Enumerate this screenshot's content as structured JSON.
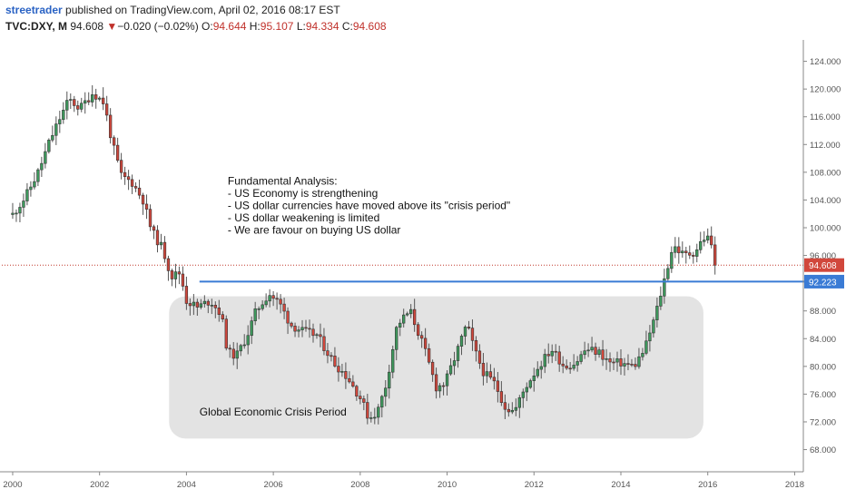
{
  "header": {
    "author": "streetrader",
    "published": " published on TradingView.com, April 02, 2016 08:17 EST",
    "symbol": "TVC:DXY, M",
    "last": "94.608",
    "change_arrow": "▼",
    "change": "−0.020 (−0.02%)",
    "o_label": "O:",
    "o_value": "94.644",
    "h_label": "H:",
    "h_value": "95.107",
    "l_label": "L:",
    "l_value": "94.334",
    "c_label": "C:",
    "c_value": "94.608"
  },
  "colors": {
    "up": "#3e9a5d",
    "down": "#d1473c",
    "wick": "#555555",
    "support_line": "#3a7bd5",
    "price_line": "#c0392b",
    "crisis_box": "#e3e3e3",
    "axis_text": "#555555"
  },
  "chart_data": {
    "type": "candlestick",
    "symbol": "TVC:DXY",
    "interval": "M",
    "x_tick_labels": [
      "2000",
      "2002",
      "2004",
      "2006",
      "2008",
      "2010",
      "2012",
      "2014",
      "2016",
      "2018"
    ],
    "xlim": [
      1999.75,
      2018.2
    ],
    "y_tick_labels": [
      "124.000",
      "120.000",
      "116.000",
      "112.000",
      "108.000",
      "104.000",
      "100.000",
      "96.000",
      "88.000",
      "84.000",
      "80.000",
      "76.000",
      "72.000",
      "68.000"
    ],
    "ylim": [
      64.8,
      126.3
    ],
    "grid": false,
    "current_price": {
      "value": 94.608,
      "label": "94.608"
    },
    "support_line": {
      "value": 92.223,
      "label": "92.223",
      "x_start": 2004.3
    },
    "annotations": [
      {
        "id": "analysis",
        "x": 2004.95,
        "y": 106.2,
        "lines": [
          "Fundamental Analysis:",
          "- US Economy is strengthening",
          "- US dollar currencies have moved above its \"crisis period\"",
          "- US dollar weakening is limited",
          "- We are favour on buying US dollar"
        ]
      },
      {
        "id": "crisis",
        "x": 2004.3,
        "y": 72.9,
        "lines": [
          "Global Economic Crisis Period"
        ]
      }
    ],
    "crisis_zone": {
      "x": [
        2003.6,
        2015.9
      ],
      "y": [
        69.6,
        90.1
      ]
    },
    "series_anchors": [
      [
        2000.0,
        101.9
      ],
      [
        2000.3,
        104.5
      ],
      [
        2000.6,
        108.2
      ],
      [
        2000.85,
        112.5
      ],
      [
        2001.1,
        116.0
      ],
      [
        2001.3,
        118.5
      ],
      [
        2001.55,
        117.2
      ],
      [
        2001.85,
        119.5
      ],
      [
        2002.1,
        118.0
      ],
      [
        2002.3,
        112.0
      ],
      [
        2002.5,
        107.5
      ],
      [
        2002.75,
        106.5
      ],
      [
        2003.0,
        104.0
      ],
      [
        2003.2,
        99.5
      ],
      [
        2003.45,
        97.0
      ],
      [
        2003.65,
        93.0
      ],
      [
        2003.85,
        93.5
      ],
      [
        2004.0,
        89.5
      ],
      [
        2004.25,
        88.5
      ],
      [
        2004.55,
        89.5
      ],
      [
        2004.8,
        87.5
      ],
      [
        2004.95,
        82.0
      ],
      [
        2005.15,
        81.5
      ],
      [
        2005.4,
        84.5
      ],
      [
        2005.6,
        88.0
      ],
      [
        2005.9,
        90.5
      ],
      [
        2006.15,
        89.0
      ],
      [
        2006.4,
        86.0
      ],
      [
        2006.7,
        85.0
      ],
      [
        2007.0,
        84.5
      ],
      [
        2007.4,
        80.5
      ],
      [
        2007.7,
        78.5
      ],
      [
        2008.0,
        75.5
      ],
      [
        2008.2,
        72.5
      ],
      [
        2008.4,
        73.5
      ],
      [
        2008.6,
        77.5
      ],
      [
        2008.85,
        86.0
      ],
      [
        2009.15,
        88.0
      ],
      [
        2009.45,
        83.0
      ],
      [
        2009.75,
        77.0
      ],
      [
        2009.95,
        77.5
      ],
      [
        2010.25,
        82.5
      ],
      [
        2010.45,
        86.0
      ],
      [
        2010.65,
        82.0
      ],
      [
        2010.85,
        79.0
      ],
      [
        2011.1,
        77.5
      ],
      [
        2011.35,
        74.0
      ],
      [
        2011.55,
        73.5
      ],
      [
        2011.8,
        77.0
      ],
      [
        2012.05,
        79.5
      ],
      [
        2012.4,
        82.5
      ],
      [
        2012.7,
        80.0
      ],
      [
        2012.95,
        80.5
      ],
      [
        2013.2,
        82.5
      ],
      [
        2013.5,
        82.0
      ],
      [
        2013.75,
        80.5
      ],
      [
        2014.0,
        80.5
      ],
      [
        2014.3,
        80.0
      ],
      [
        2014.55,
        82.5
      ],
      [
        2014.8,
        87.5
      ],
      [
        2015.0,
        92.5
      ],
      [
        2015.2,
        97.5
      ],
      [
        2015.45,
        96.0
      ],
      [
        2015.7,
        96.5
      ],
      [
        2015.9,
        98.5
      ],
      [
        2016.05,
        98.5
      ],
      [
        2016.2,
        94.6
      ]
    ]
  }
}
